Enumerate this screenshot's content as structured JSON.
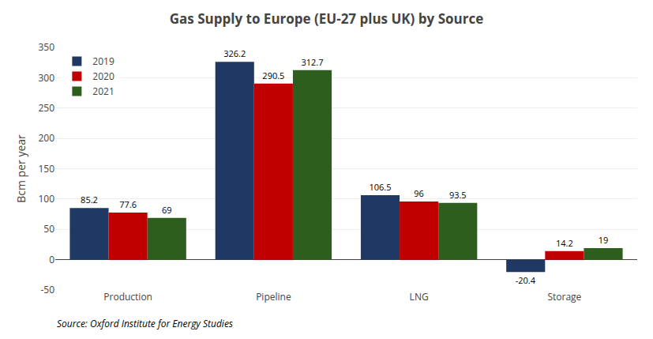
{
  "chart_data": {
    "type": "bar",
    "title": "Gas Supply to Europe (EU-27 plus UK) by Source",
    "ylabel": "Bcm per year",
    "annotations": [
      "Source: Oxford Institute for Energy Studies"
    ],
    "categories": [
      "Production",
      "Pipeline",
      "LNG",
      "Storage"
    ],
    "series": [
      {
        "name": "2019",
        "color": "#1f3864",
        "values": [
          85.2,
          326.2,
          106.5,
          -20.4
        ]
      },
      {
        "name": "2020",
        "color": "#c00000",
        "values": [
          77.6,
          290.5,
          96.0,
          14.2
        ]
      },
      {
        "name": "2021",
        "color": "#2e5e1e",
        "values": [
          69.0,
          312.7,
          93.5,
          19.0
        ]
      }
    ],
    "ylim": [
      -50,
      350
    ],
    "yticks": [
      -50,
      0,
      50,
      100,
      150,
      200,
      250,
      300,
      350
    ],
    "grid": true,
    "legend": "upper left",
    "data_labels": true
  }
}
